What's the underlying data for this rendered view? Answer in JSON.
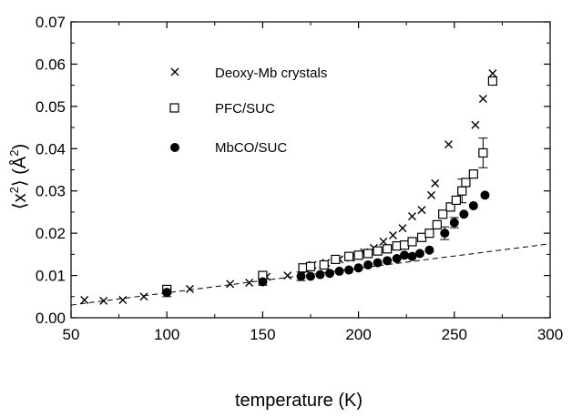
{
  "chart_data": {
    "type": "scatter",
    "title": "",
    "xlabel": "temperature (K)",
    "ylabel_parts": {
      "open": "⟨x",
      "sup1": "2",
      "mid": "⟩ (Å",
      "sup2": "2",
      "close": ")"
    },
    "xlim": [
      50,
      300
    ],
    "ylim": [
      0,
      0.07
    ],
    "x_ticks": [
      50,
      100,
      150,
      200,
      250,
      300
    ],
    "y_ticks": [
      0.0,
      0.01,
      0.02,
      0.03,
      0.04,
      0.05,
      0.06,
      0.07
    ],
    "x_tick_labels": [
      "50",
      "100",
      "150",
      "200",
      "250",
      "300"
    ],
    "y_tick_labels": [
      "0.00",
      "0.01",
      "0.02",
      "0.03",
      "0.04",
      "0.05",
      "0.06",
      "0.07"
    ],
    "grid": false,
    "legend_position": "top-left",
    "series": [
      {
        "name": "Deoxy-Mb crystals",
        "marker": "x",
        "points": [
          [
            57,
            0.0042
          ],
          [
            67,
            0.004
          ],
          [
            77,
            0.0042
          ],
          [
            88,
            0.005
          ],
          [
            100,
            0.0062
          ],
          [
            112,
            0.0068
          ],
          [
            133,
            0.008
          ],
          [
            143,
            0.0083
          ],
          [
            152,
            0.0097
          ],
          [
            163,
            0.01
          ],
          [
            173,
            0.0112
          ],
          [
            176,
            0.0125
          ],
          [
            183,
            0.013
          ],
          [
            190,
            0.0138
          ],
          [
            196,
            0.0142
          ],
          [
            203,
            0.0155
          ],
          [
            208,
            0.0165
          ],
          [
            213,
            0.018
          ],
          [
            218,
            0.0195
          ],
          [
            223,
            0.0212
          ],
          [
            228,
            0.024
          ],
          [
            233,
            0.0255
          ],
          [
            238,
            0.029
          ],
          [
            240,
            0.0318
          ],
          [
            247,
            0.041
          ],
          [
            261,
            0.0456
          ],
          [
            265,
            0.0518
          ],
          [
            270,
            0.0578
          ]
        ],
        "error_bars": []
      },
      {
        "name": "PFC/SUC",
        "marker": "square",
        "points": [
          [
            100,
            0.0067
          ],
          [
            150,
            0.01
          ],
          [
            171,
            0.0118
          ],
          [
            175,
            0.0121
          ],
          [
            182,
            0.0125
          ],
          [
            188,
            0.0138
          ],
          [
            195,
            0.0145
          ],
          [
            200,
            0.0148
          ],
          [
            205,
            0.0152
          ],
          [
            210,
            0.0158
          ],
          [
            215,
            0.0163
          ],
          [
            220,
            0.017
          ],
          [
            224,
            0.0172
          ],
          [
            228,
            0.018
          ],
          [
            233,
            0.019
          ],
          [
            237,
            0.02
          ],
          [
            241,
            0.022
          ],
          [
            244,
            0.0245
          ],
          [
            248,
            0.0262
          ],
          [
            251,
            0.0278
          ],
          [
            254,
            0.03
          ],
          [
            256,
            0.032
          ],
          [
            260,
            0.034
          ],
          [
            265,
            0.039
          ],
          [
            270,
            0.056
          ]
        ],
        "error_bars": [
          {
            "x": 254,
            "y": 0.03,
            "err": 0.0028
          },
          {
            "x": 265,
            "y": 0.039,
            "err": 0.0035
          }
        ]
      },
      {
        "name": "MbCO/SUC",
        "marker": "circle-filled",
        "points": [
          [
            100,
            0.006
          ],
          [
            150,
            0.0085
          ],
          [
            170,
            0.0098
          ],
          [
            175,
            0.0098
          ],
          [
            180,
            0.0102
          ],
          [
            185,
            0.0105
          ],
          [
            190,
            0.011
          ],
          [
            195,
            0.0113
          ],
          [
            200,
            0.0118
          ],
          [
            205,
            0.0125
          ],
          [
            210,
            0.013
          ],
          [
            215,
            0.0135
          ],
          [
            220,
            0.014
          ],
          [
            224,
            0.0148
          ],
          [
            228,
            0.0145
          ],
          [
            232,
            0.0152
          ],
          [
            237,
            0.016
          ],
          [
            245,
            0.02
          ],
          [
            250,
            0.0225
          ],
          [
            255,
            0.0245
          ],
          [
            260,
            0.0265
          ],
          [
            266,
            0.029
          ]
        ],
        "error_bars": [
          {
            "x": 100,
            "y": 0.006,
            "err": 0.001
          },
          {
            "x": 150,
            "y": 0.0085,
            "err": 0.0008
          },
          {
            "x": 170,
            "y": 0.0098,
            "err": 0.001
          },
          {
            "x": 245,
            "y": 0.02,
            "err": 0.0015
          },
          {
            "x": 250,
            "y": 0.0225,
            "err": 0.0012
          }
        ]
      }
    ],
    "fit_line": {
      "style": "dashed",
      "from": [
        50,
        0.003
      ],
      "to": [
        300,
        0.0175
      ]
    }
  }
}
